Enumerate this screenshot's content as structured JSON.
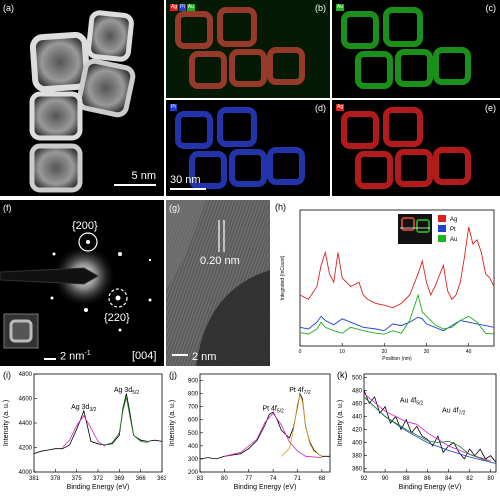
{
  "panels": {
    "a": {
      "label": "(a)",
      "scale": "5 nm"
    },
    "b": {
      "label": "(b)",
      "chips": [
        "Ag",
        "Pt",
        "Au"
      ]
    },
    "c": {
      "label": "(c)",
      "chip": "Au"
    },
    "d": {
      "label": "(d)",
      "chip": "Pt"
    },
    "e": {
      "label": "(e)",
      "chip": "Ag"
    },
    "bscale": "30 nm",
    "f": {
      "label": "(f)",
      "ring1": "{200}",
      "ring2": "{220}",
      "scale": "2 nm",
      "scale_sup": "-1",
      "zone": "[004]"
    },
    "g": {
      "label": "(g)",
      "spacing": "0.20 nm",
      "scale": "2 nm"
    },
    "h": {
      "label": "(h)"
    },
    "i": {
      "label": "(i)"
    },
    "j": {
      "label": "(j)"
    },
    "k": {
      "label": "(k)"
    }
  },
  "colors": {
    "Ag": "#e02020",
    "Pt": "#2040d0",
    "Au": "#20b020",
    "fit_magenta": "#d020c0",
    "fit_green": "#208020",
    "fit_orange": "#e0a020"
  },
  "chart_data": [
    {
      "type": "line",
      "panel": "h",
      "xlabel": "Position (nm)",
      "ylabel": "Integrated (InCount)",
      "xticks": [
        0,
        10,
        20,
        30,
        40
      ],
      "xlim": [
        0,
        46
      ],
      "legend": [
        "Ag",
        "Pt",
        "Au"
      ],
      "series": [
        {
          "name": "Ag",
          "x": [
            0,
            2,
            4,
            5,
            6,
            7,
            8,
            9,
            10,
            12,
            14,
            15,
            16,
            18,
            20,
            22,
            24,
            26,
            28,
            29,
            30,
            31,
            32,
            34,
            35,
            36,
            37,
            38,
            39,
            40,
            41,
            42,
            43,
            44,
            45,
            46
          ],
          "y": [
            60,
            55,
            70,
            95,
            110,
            85,
            75,
            110,
            80,
            70,
            75,
            60,
            55,
            50,
            48,
            45,
            50,
            60,
            85,
            100,
            75,
            60,
            70,
            95,
            65,
            55,
            60,
            75,
            105,
            140,
            120,
            125,
            110,
            85,
            80,
            70
          ]
        },
        {
          "name": "Pt",
          "x": [
            0,
            2,
            4,
            5,
            6,
            8,
            10,
            12,
            15,
            18,
            20,
            22,
            24,
            26,
            28,
            29,
            30,
            32,
            34,
            36,
            38,
            40,
            42,
            44,
            46
          ],
          "y": [
            22,
            20,
            28,
            35,
            30,
            25,
            32,
            28,
            22,
            20,
            18,
            26,
            24,
            28,
            34,
            32,
            26,
            22,
            18,
            24,
            30,
            28,
            26,
            24,
            22
          ]
        },
        {
          "name": "Au",
          "x": [
            0,
            2,
            4,
            5,
            6,
            8,
            10,
            12,
            15,
            18,
            20,
            22,
            24,
            26,
            28,
            29,
            30,
            32,
            34,
            36,
            38,
            40,
            42,
            44,
            46
          ],
          "y": [
            16,
            14,
            20,
            28,
            22,
            18,
            15,
            22,
            18,
            15,
            14,
            18,
            15,
            30,
            60,
            40,
            35,
            25,
            20,
            22,
            30,
            35,
            28,
            15,
            14
          ]
        }
      ]
    },
    {
      "type": "line",
      "panel": "i",
      "xlabel": "Binding Energy (eV)",
      "ylabel": "Intensity (a. u.)",
      "xticks": [
        381,
        378,
        375,
        372,
        369,
        366,
        363
      ],
      "yticks": [
        4000,
        4200,
        4400,
        4600,
        4800
      ],
      "xlim": [
        381,
        363
      ],
      "ylim": [
        4000,
        4800
      ],
      "peaks": [
        {
          "label": "Ag 3d",
          "sub": "3/2",
          "x": 374.0,
          "y": 4480
        },
        {
          "label": "Ag 3d",
          "sub": "5/2",
          "x": 368.0,
          "y": 4620
        }
      ],
      "series": [
        {
          "name": "raw",
          "color": "#000",
          "x": [
            381,
            380,
            379,
            378,
            377,
            376,
            375,
            374.5,
            374,
            373.5,
            373,
            372,
            371,
            370,
            369,
            368.5,
            368,
            367.5,
            367,
            366,
            365,
            364,
            363
          ],
          "y": [
            4150,
            4170,
            4180,
            4190,
            4190,
            4220,
            4350,
            4420,
            4500,
            4380,
            4250,
            4230,
            4220,
            4230,
            4300,
            4520,
            4640,
            4480,
            4300,
            4260,
            4250,
            4260,
            4250
          ]
        },
        {
          "name": "fit_Ag3d3/2",
          "color": "#d020c0",
          "x": [
            377,
            376,
            375,
            374,
            373,
            372,
            371
          ],
          "y": [
            4200,
            4260,
            4380,
            4460,
            4360,
            4250,
            4210
          ]
        },
        {
          "name": "fit_Ag3d5/2",
          "color": "#208020",
          "x": [
            371,
            370,
            369,
            368.5,
            368,
            367.5,
            367,
            366,
            365
          ],
          "y": [
            4220,
            4240,
            4320,
            4500,
            4610,
            4450,
            4300,
            4250,
            4240
          ]
        }
      ]
    },
    {
      "type": "line",
      "panel": "j",
      "xlabel": "Binding Energy (eV)",
      "ylabel": "Intensity (a. u.)",
      "xticks": [
        83,
        80,
        77,
        74,
        71,
        68
      ],
      "yticks": [
        200,
        300,
        400,
        500,
        600,
        700,
        800,
        900
      ],
      "xlim": [
        83,
        67
      ],
      "ylim": [
        200,
        950
      ],
      "peaks": [
        {
          "label": "Pt 4f",
          "sub": "5/2",
          "x": 74.0,
          "y": 640
        },
        {
          "label": "Pt 4f",
          "sub": "7/2",
          "x": 70.7,
          "y": 780
        }
      ],
      "series": [
        {
          "name": "raw",
          "color": "#000",
          "x": [
            83,
            82,
            81,
            80,
            79,
            78,
            77,
            76,
            75,
            74.5,
            74,
            73.5,
            73,
            72,
            71.5,
            71,
            70.7,
            70.4,
            70,
            69.5,
            69,
            68.5,
            68,
            67
          ],
          "y": [
            300,
            310,
            300,
            320,
            330,
            340,
            380,
            440,
            560,
            640,
            660,
            600,
            520,
            460,
            540,
            700,
            800,
            760,
            550,
            430,
            370,
            340,
            320,
            320
          ]
        },
        {
          "name": "fit_Pt4f5/2",
          "color": "#d020c0",
          "x": [
            80,
            78,
            76,
            75,
            74,
            73,
            72,
            71,
            70,
            68
          ],
          "y": [
            320,
            350,
            450,
            580,
            650,
            560,
            430,
            360,
            320,
            310
          ]
        },
        {
          "name": "fit_Pt4f7/2",
          "color": "#e0a020",
          "x": [
            73,
            72,
            71.5,
            71,
            70.7,
            70.4,
            70,
            69.5,
            69,
            68
          ],
          "y": [
            320,
            380,
            520,
            720,
            790,
            740,
            560,
            420,
            360,
            320
          ]
        }
      ]
    },
    {
      "type": "line",
      "panel": "k",
      "xlabel": "Binding Energy (eV)",
      "ylabel": "Intensity (a. u.)",
      "xticks": [
        92,
        90,
        88,
        86,
        84,
        82,
        80
      ],
      "yticks": [
        360,
        380,
        400,
        420,
        440,
        460,
        480,
        500
      ],
      "xlim": [
        92,
        79.5
      ],
      "ylim": [
        355,
        505
      ],
      "peaks": [
        {
          "label": "Au 4f",
          "sub": "5/2",
          "x": 87.5,
          "y": 455
        },
        {
          "label": "Au 4f",
          "sub": "7/2",
          "x": 83.5,
          "y": 440
        }
      ],
      "series": [
        {
          "name": "raw",
          "color": "#000",
          "x": [
            92,
            91.5,
            91,
            90.5,
            90,
            89.5,
            89,
            88.5,
            88,
            87.5,
            87,
            86.5,
            86,
            85.5,
            85,
            84.5,
            84,
            83.5,
            83,
            82.5,
            82,
            81.5,
            81,
            80.5,
            80,
            79.5
          ],
          "y": [
            480,
            460,
            470,
            445,
            455,
            430,
            440,
            420,
            435,
            415,
            425,
            410,
            405,
            395,
            410,
            385,
            395,
            400,
            385,
            375,
            390,
            380,
            390,
            375,
            380,
            370
          ]
        },
        {
          "name": "background",
          "color": "#2040d0",
          "x": [
            92,
            90,
            88,
            86,
            84,
            82,
            80,
            79.5
          ],
          "y": [
            470,
            440,
            418,
            400,
            388,
            378,
            370,
            368
          ]
        },
        {
          "name": "fit_Au4f5/2",
          "color": "#d020c0",
          "x": [
            92,
            90,
            88,
            87,
            86,
            84,
            82,
            80
          ],
          "y": [
            475,
            448,
            432,
            428,
            415,
            395,
            382,
            372
          ]
        },
        {
          "name": "fit_Au4f7/2",
          "color": "#208020",
          "x": [
            92,
            90,
            88,
            86,
            85,
            84,
            83,
            82,
            80
          ],
          "y": [
            470,
            440,
            420,
            403,
            400,
            402,
            395,
            382,
            370
          ]
        }
      ]
    }
  ]
}
